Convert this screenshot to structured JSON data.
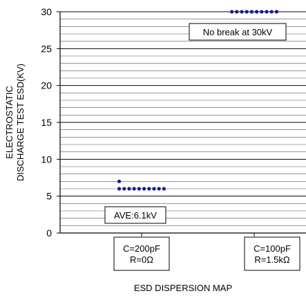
{
  "chart_data": {
    "type": "scatter",
    "xlabel": "ESD DISPERSION MAP",
    "ylabel_lines": [
      "ELECTROSTATIC",
      "DISCHARGE TEST ESD(KV)"
    ],
    "ylim": [
      0,
      30
    ],
    "yticks": [
      0,
      5,
      10,
      15,
      20,
      25,
      30
    ],
    "minor_grid_step": 1,
    "grid": true,
    "categories": [
      {
        "lines": [
          "C=200pF",
          "R=0Ω"
        ]
      },
      {
        "lines": [
          "C=100pF",
          "R=1.5kΩ"
        ]
      }
    ],
    "series": [
      {
        "category_index": 0,
        "color": "#1a1a8c",
        "points": [
          {
            "y": 6,
            "count": 10
          },
          {
            "y": 7,
            "count": 1
          }
        ]
      },
      {
        "category_index": 1,
        "color": "#1a1a8c",
        "points": [
          {
            "y": 30,
            "count": 10
          }
        ]
      }
    ],
    "annotations": [
      {
        "text": "No break at 30kV",
        "category_index": 1
      },
      {
        "text": "AVE:6.1kV",
        "category_index": 0
      }
    ]
  }
}
